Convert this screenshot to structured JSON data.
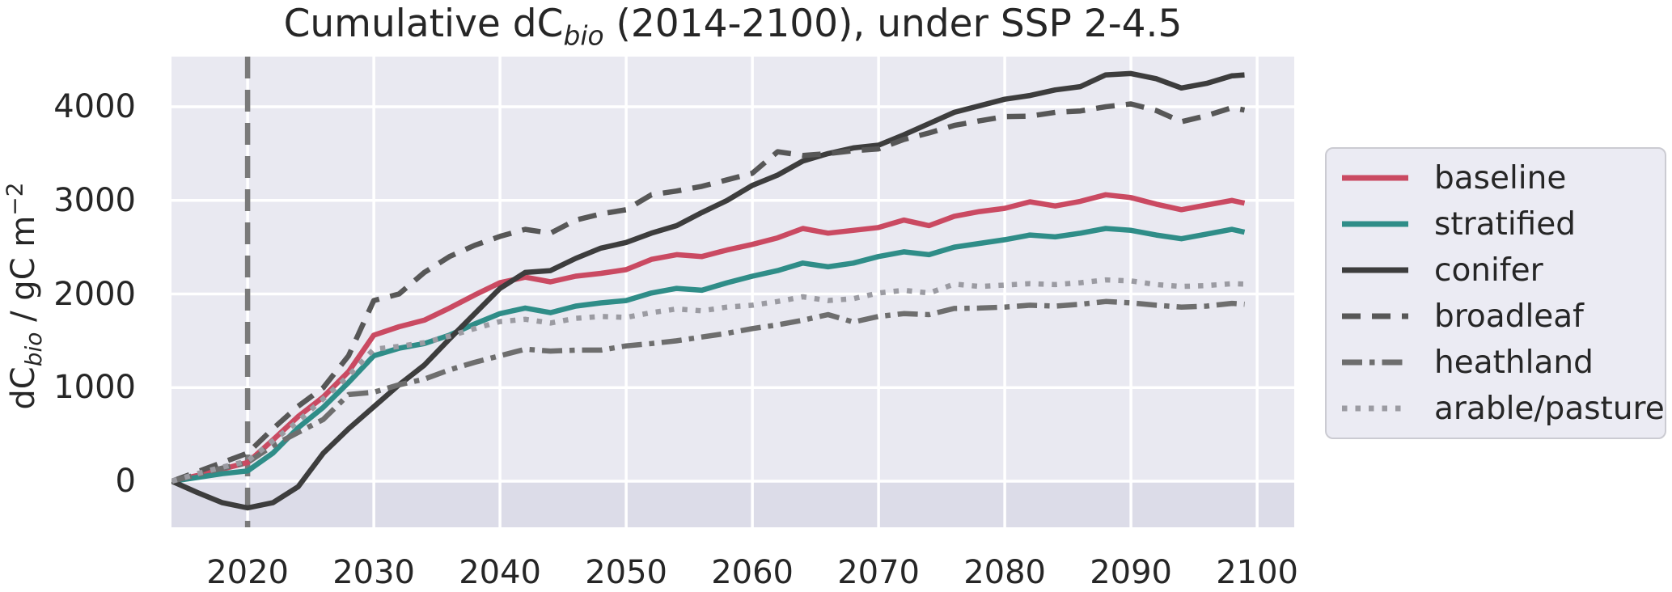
{
  "title": {
    "prefix": "Cumulative dC",
    "sub": "bio",
    "suffix": " (2014-2100), under SSP 2-4.5"
  },
  "y_axis": {
    "label_p1": "dC",
    "label_sub": "bio",
    "label_p2": " / gC m",
    "label_sup": "−2",
    "ticks": [
      "0",
      "1000",
      "2000",
      "3000",
      "4000"
    ],
    "tick_values": [
      0,
      1000,
      2000,
      3000,
      4000
    ]
  },
  "x_axis": {
    "ticks": [
      "2020",
      "2030",
      "2040",
      "2050",
      "2060",
      "2070",
      "2080",
      "2090",
      "2100"
    ],
    "tick_values": [
      2020,
      2030,
      2040,
      2050,
      2060,
      2070,
      2080,
      2090,
      2100
    ]
  },
  "colors": {
    "plot_background": "#e9e9f1",
    "below_zero_band": "#dcdce8",
    "gridline": "#ffffff",
    "vline": "#7a7a7a",
    "text": "#262626",
    "legend_background": "#ebebf3",
    "legend_border": "#cbcbd2"
  },
  "chart_data": {
    "type": "line",
    "title": "Cumulative dC_bio (2014-2100), under SSP 2-4.5",
    "xlabel": "",
    "ylabel": "dC_bio / gC m^-2",
    "xlim": [
      2014,
      2103
    ],
    "ylim": [
      -490,
      4535
    ],
    "grid": true,
    "legend_position": "right",
    "vline_year": 2020,
    "x": [
      2014,
      2016,
      2018,
      2020,
      2022,
      2024,
      2026,
      2028,
      2030,
      2032,
      2034,
      2036,
      2038,
      2040,
      2042,
      2044,
      2046,
      2048,
      2050,
      2052,
      2054,
      2056,
      2058,
      2060,
      2062,
      2064,
      2066,
      2068,
      2070,
      2072,
      2074,
      2076,
      2078,
      2080,
      2082,
      2084,
      2086,
      2088,
      2090,
      2092,
      2094,
      2096,
      2098,
      2099
    ],
    "series": [
      {
        "name": "baseline",
        "color": "#ca4a62",
        "style": "solid",
        "values": [
          0,
          60,
          130,
          200,
          440,
          690,
          900,
          1170,
          1560,
          1650,
          1720,
          1850,
          1990,
          2120,
          2180,
          2130,
          2190,
          2220,
          2260,
          2370,
          2420,
          2400,
          2470,
          2530,
          2600,
          2700,
          2650,
          2680,
          2710,
          2790,
          2730,
          2830,
          2880,
          2915,
          2985,
          2940,
          2990,
          3060,
          3030,
          2960,
          2900,
          2950,
          3000,
          2970
        ]
      },
      {
        "name": "stratified",
        "color": "#2f8d88",
        "style": "solid",
        "values": [
          0,
          40,
          80,
          110,
          300,
          570,
          790,
          1055,
          1340,
          1420,
          1470,
          1560,
          1680,
          1790,
          1850,
          1800,
          1870,
          1905,
          1930,
          2010,
          2060,
          2040,
          2120,
          2190,
          2250,
          2330,
          2290,
          2330,
          2400,
          2450,
          2420,
          2500,
          2540,
          2580,
          2630,
          2610,
          2650,
          2700,
          2680,
          2630,
          2590,
          2640,
          2690,
          2660
        ]
      },
      {
        "name": "conifer",
        "color": "#3d3d3d",
        "style": "solid",
        "values": [
          0,
          -120,
          -230,
          -285,
          -230,
          -60,
          300,
          560,
          795,
          1030,
          1240,
          1520,
          1790,
          2060,
          2230,
          2250,
          2380,
          2490,
          2550,
          2650,
          2730,
          2870,
          3000,
          3160,
          3270,
          3420,
          3500,
          3560,
          3590,
          3700,
          3820,
          3940,
          4010,
          4080,
          4120,
          4180,
          4215,
          4340,
          4355,
          4300,
          4200,
          4250,
          4330,
          4340
        ]
      },
      {
        "name": "broadleaf",
        "color": "#575757",
        "style": "dashed",
        "values": [
          0,
          100,
          200,
          300,
          560,
          800,
          1000,
          1340,
          1930,
          2000,
          2230,
          2400,
          2520,
          2615,
          2690,
          2650,
          2790,
          2855,
          2900,
          3060,
          3100,
          3150,
          3220,
          3290,
          3520,
          3480,
          3500,
          3530,
          3550,
          3650,
          3720,
          3800,
          3850,
          3895,
          3900,
          3940,
          3955,
          4000,
          4030,
          3960,
          3840,
          3905,
          3990,
          3965
        ]
      },
      {
        "name": "heathland",
        "color": "#6e6e6e",
        "style": "dashdot",
        "values": [
          0,
          70,
          140,
          200,
          380,
          520,
          660,
          925,
          950,
          1030,
          1090,
          1190,
          1270,
          1340,
          1410,
          1390,
          1400,
          1400,
          1445,
          1470,
          1500,
          1540,
          1580,
          1630,
          1670,
          1720,
          1780,
          1700,
          1760,
          1790,
          1780,
          1845,
          1850,
          1860,
          1880,
          1870,
          1890,
          1920,
          1905,
          1880,
          1860,
          1870,
          1900,
          1890
        ]
      },
      {
        "name": "arable/pasture",
        "color": "#9b9ba2",
        "style": "dotted",
        "values": [
          0,
          80,
          150,
          215,
          430,
          640,
          880,
          1125,
          1410,
          1440,
          1480,
          1550,
          1630,
          1705,
          1730,
          1690,
          1740,
          1760,
          1750,
          1800,
          1840,
          1820,
          1860,
          1880,
          1920,
          1970,
          1930,
          1950,
          2010,
          2040,
          2010,
          2105,
          2080,
          2095,
          2110,
          2100,
          2120,
          2150,
          2140,
          2100,
          2080,
          2090,
          2110,
          2105
        ]
      }
    ]
  }
}
